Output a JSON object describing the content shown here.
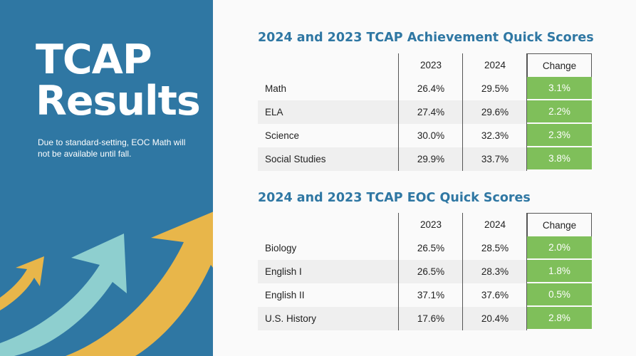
{
  "sidebar": {
    "title_line1": "TCAP",
    "title_line2": "Results",
    "note": "Due to standard-setting, EOC Math will not be available until fall."
  },
  "colors": {
    "panel_blue": "#2f77a3",
    "arrow_gold": "#e8b64a",
    "arrow_teal": "#8ecfcf",
    "change_green": "#7fbf5a"
  },
  "achievement": {
    "title": "2024 and 2023 TCAP Achievement Quick Scores",
    "headers": {
      "y2023": "2023",
      "y2024": "2024",
      "change": "Change"
    },
    "rows": [
      {
        "label": "Math",
        "y2023": "26.4%",
        "y2024": "29.5%",
        "change": "3.1%"
      },
      {
        "label": "ELA",
        "y2023": "27.4%",
        "y2024": "29.6%",
        "change": "2.2%"
      },
      {
        "label": "Science",
        "y2023": "30.0%",
        "y2024": "32.3%",
        "change": "2.3%"
      },
      {
        "label": "Social Studies",
        "y2023": "29.9%",
        "y2024": "33.7%",
        "change": "3.8%"
      }
    ]
  },
  "eoc": {
    "title": "2024 and 2023 TCAP EOC Quick Scores",
    "headers": {
      "y2023": "2023",
      "y2024": "2024",
      "change": "Change"
    },
    "rows": [
      {
        "label": "Biology",
        "y2023": "26.5%",
        "y2024": "28.5%",
        "change": "2.0%"
      },
      {
        "label": "English I",
        "y2023": "26.5%",
        "y2024": "28.3%",
        "change": "1.8%"
      },
      {
        "label": "English II",
        "y2023": "37.1%",
        "y2024": "37.6%",
        "change": "0.5%"
      },
      {
        "label": "U.S. History",
        "y2023": "17.6%",
        "y2024": "20.4%",
        "change": "2.8%"
      }
    ]
  }
}
